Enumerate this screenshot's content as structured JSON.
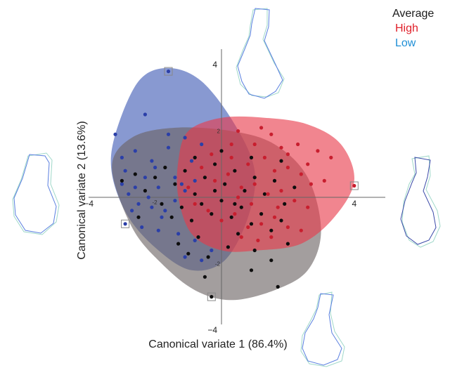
{
  "chart_data": {
    "type": "scatter",
    "xlabel": "Canonical variate 1 (86.4%)",
    "ylabel": "Canonical variate 2 (13.6%)",
    "xlim": [
      -4,
      4.6
    ],
    "ylim": [
      -4.3,
      4.3
    ],
    "x_ticks": [
      {
        "value": -4,
        "label": "−4"
      },
      {
        "value": 4,
        "label": "4"
      }
    ],
    "y_ticks": [
      {
        "value": 4,
        "label": "4"
      },
      {
        "value": -4,
        "label": "−4"
      }
    ],
    "inner_ticks": [
      {
        "axis": "y",
        "value": 2,
        "label": "2"
      },
      {
        "axis": "y",
        "value": -2,
        "label": "-2"
      },
      {
        "axis": "x",
        "value": -2,
        "label": "-2"
      }
    ],
    "grid": false,
    "legend_position": "top-right",
    "legend": [
      {
        "name": "Average",
        "color": "#1a1a1a"
      },
      {
        "name": "High",
        "color": "#e0202a"
      },
      {
        "name": "Low",
        "color": "#1f8fd6"
      }
    ],
    "series": [
      {
        "name": "Low",
        "point_color": "#2b3fa8",
        "fill_color": "#3f5bb5",
        "hull": [
          [
            -3.2,
            1.9
          ],
          [
            -2.5,
            3.5
          ],
          [
            -1.6,
            3.9
          ],
          [
            -0.6,
            3.5
          ],
          [
            0.4,
            2.2
          ],
          [
            1.0,
            0.8
          ],
          [
            0.8,
            -0.6
          ],
          [
            0.1,
            -1.9
          ],
          [
            -0.9,
            -2.2
          ],
          [
            -1.9,
            -1.6
          ],
          [
            -2.8,
            -0.6
          ],
          [
            -3.3,
            0.7
          ]
        ],
        "extreme": [
          [
            -1.6,
            3.8
          ],
          [
            -2.9,
            -0.8
          ]
        ],
        "points": [
          [
            -3.2,
            1.9
          ],
          [
            -2.3,
            2.5
          ],
          [
            -1.1,
            1.8
          ],
          [
            -2.6,
            1.4
          ],
          [
            -3.0,
            1.2
          ],
          [
            -2.1,
            1.1
          ],
          [
            -1.6,
            1.5
          ],
          [
            -0.9,
            1.1
          ],
          [
            -0.6,
            1.6
          ],
          [
            -3.0,
            0.4
          ],
          [
            -2.6,
            0.3
          ],
          [
            -2.3,
            0.6
          ],
          [
            -1.9,
            0.3
          ],
          [
            -1.4,
            0.6
          ],
          [
            -1.1,
            0.2
          ],
          [
            -2.8,
            0.1
          ],
          [
            -2.5,
            -0.2
          ],
          [
            -2.1,
            -0.3
          ],
          [
            -1.7,
            -0.4
          ],
          [
            -1.4,
            -0.1
          ],
          [
            -2.4,
            -0.9
          ],
          [
            -1.9,
            -1.0
          ],
          [
            -1.3,
            -1.1
          ],
          [
            -0.8,
            -1.3
          ],
          [
            -1.1,
            -1.8
          ],
          [
            -0.6,
            -1.9
          ],
          [
            -0.3,
            -1.6
          ],
          [
            -1.6,
            1.9
          ],
          [
            -2.0,
            0.9
          ],
          [
            -1.8,
            -0.6
          ],
          [
            -2.9,
            0.8
          ],
          [
            -1.2,
            0.4
          ],
          [
            -0.8,
            0.5
          ],
          [
            -2.2,
            0.0
          ],
          [
            -2.7,
            -0.4
          ]
        ]
      },
      {
        "name": "Average",
        "point_color": "#0d0d0d",
        "fill_color": "#6b6262",
        "hull": [
          [
            -3.3,
            0.9
          ],
          [
            -2.7,
            1.8
          ],
          [
            -1.4,
            2.1
          ],
          [
            0.3,
            2.0
          ],
          [
            1.6,
            1.6
          ],
          [
            2.6,
            0.6
          ],
          [
            3.0,
            -1.0
          ],
          [
            2.6,
            -2.2
          ],
          [
            1.6,
            -2.8
          ],
          [
            0.3,
            -3.1
          ],
          [
            -0.8,
            -2.8
          ],
          [
            -1.8,
            -2.0
          ],
          [
            -2.7,
            -0.9
          ]
        ],
        "extreme": [
          [
            -0.3,
            -3.0
          ]
        ],
        "points": [
          [
            -3.0,
            0.5
          ],
          [
            -2.6,
            0.7
          ],
          [
            -2.3,
            0.2
          ],
          [
            -2.0,
            0.6
          ],
          [
            -1.7,
            0.9
          ],
          [
            -1.4,
            0.4
          ],
          [
            -1.1,
            0.8
          ],
          [
            -0.8,
            1.2
          ],
          [
            -0.5,
            0.6
          ],
          [
            -0.2,
            1.0
          ],
          [
            0.1,
            0.4
          ],
          [
            0.4,
            0.8
          ],
          [
            0.7,
            0.2
          ],
          [
            1.0,
            0.6
          ],
          [
            1.3,
            0.1
          ],
          [
            1.6,
            0.5
          ],
          [
            1.9,
            -0.2
          ],
          [
            2.2,
            0.3
          ],
          [
            -1.8,
            -0.2
          ],
          [
            -1.5,
            -0.6
          ],
          [
            -1.2,
            -0.3
          ],
          [
            -0.9,
            -0.7
          ],
          [
            -0.6,
            -0.2
          ],
          [
            -0.3,
            -0.5
          ],
          [
            0.0,
            -0.1
          ],
          [
            0.3,
            -0.6
          ],
          [
            0.6,
            -0.3
          ],
          [
            0.9,
            -0.8
          ],
          [
            1.2,
            -0.5
          ],
          [
            1.5,
            -1.0
          ],
          [
            1.8,
            -0.7
          ],
          [
            -1.3,
            -1.4
          ],
          [
            -1.0,
            -1.7
          ],
          [
            -0.7,
            -1.2
          ],
          [
            -0.4,
            -1.8
          ],
          [
            0.2,
            -1.5
          ],
          [
            0.5,
            -1.1
          ],
          [
            1.0,
            -1.6
          ],
          [
            1.5,
            -1.9
          ],
          [
            2.0,
            -1.4
          ],
          [
            1.7,
            -2.7
          ],
          [
            0.9,
            -2.2
          ],
          [
            -0.5,
            -2.4
          ],
          [
            -0.8,
            0.1
          ],
          [
            0.0,
            1.4
          ],
          [
            0.9,
            1.2
          ],
          [
            1.8,
            1.1
          ],
          [
            -0.2,
            0.2
          ],
          [
            0.4,
            -0.2
          ],
          [
            -2.5,
            -0.6
          ]
        ]
      },
      {
        "name": "High",
        "point_color": "#c81e2e",
        "fill_color": "#e83a4a",
        "hull": [
          [
            -1.3,
            1.1
          ],
          [
            -1.0,
            2.0
          ],
          [
            0.0,
            2.4
          ],
          [
            1.3,
            2.4
          ],
          [
            2.6,
            2.2
          ],
          [
            3.6,
            1.6
          ],
          [
            4.0,
            0.5
          ],
          [
            3.4,
            -0.6
          ],
          [
            2.4,
            -1.4
          ],
          [
            1.1,
            -1.6
          ],
          [
            0.0,
            -1.6
          ],
          [
            -0.9,
            -1.1
          ],
          [
            -1.3,
            0.0
          ]
        ],
        "extreme": [
          [
            4.0,
            0.35
          ]
        ],
        "points": [
          [
            0.5,
            2.0
          ],
          [
            1.2,
            2.1
          ],
          [
            1.5,
            1.9
          ],
          [
            1.8,
            1.5
          ],
          [
            2.3,
            1.6
          ],
          [
            2.9,
            1.4
          ],
          [
            3.3,
            1.2
          ],
          [
            0.3,
            1.2
          ],
          [
            0.8,
            1.0
          ],
          [
            1.3,
            1.2
          ],
          [
            1.6,
            0.8
          ],
          [
            2.0,
            0.9
          ],
          [
            2.4,
            0.7
          ],
          [
            2.7,
            0.4
          ],
          [
            3.1,
            0.5
          ],
          [
            -0.6,
            0.9
          ],
          [
            -0.2,
            0.5
          ],
          [
            0.2,
            0.7
          ],
          [
            0.6,
            0.3
          ],
          [
            1.0,
            0.4
          ],
          [
            1.4,
            0.1
          ],
          [
            1.8,
            0.2
          ],
          [
            2.2,
            -0.1
          ],
          [
            2.6,
            -0.3
          ],
          [
            -0.8,
            -0.2
          ],
          [
            -0.4,
            -0.4
          ],
          [
            0.0,
            -0.7
          ],
          [
            0.4,
            -0.5
          ],
          [
            0.8,
            -0.9
          ],
          [
            1.2,
            -0.8
          ],
          [
            1.6,
            -0.6
          ],
          [
            2.0,
            -0.9
          ],
          [
            2.4,
            -1.0
          ],
          [
            0.6,
            -1.2
          ],
          [
            1.1,
            -1.3
          ],
          [
            1.5,
            -1.2
          ],
          [
            0.3,
            1.6
          ],
          [
            2.0,
            1.3
          ],
          [
            2.6,
            1.0
          ],
          [
            1.0,
            1.6
          ],
          [
            -1.0,
            0.3
          ],
          [
            0.9,
            -0.2
          ],
          [
            1.7,
            -0.3
          ],
          [
            0.5,
            0.0
          ],
          [
            -0.3,
            1.3
          ]
        ]
      }
    ]
  },
  "legend_labels": {
    "average": "Average",
    "high": "High",
    "low": "Low"
  }
}
